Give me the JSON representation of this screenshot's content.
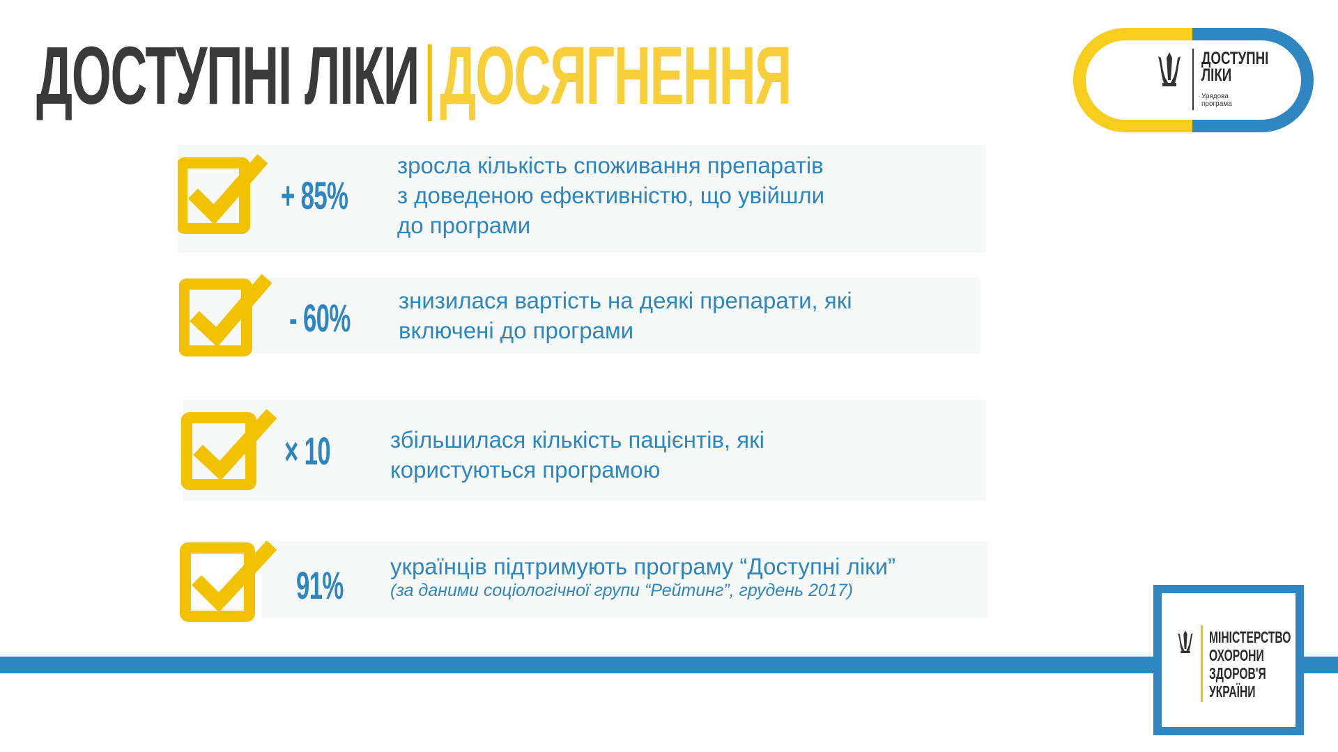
{
  "title": {
    "part1": "ДОСТУПНІ ЛІКИ",
    "separator": "|",
    "part2": "ДОСЯГНЕННЯ"
  },
  "logo": {
    "line1": "ДОСТУПНІ",
    "line2": "ЛІКИ",
    "sub1": "Урядова",
    "sub2": "програма",
    "icon": "trident-icon"
  },
  "items": [
    {
      "stat": "+ 85%",
      "lines": [
        "зросла кількість споживання препаратів",
        "з доведеною ефективністю, що увійшли",
        "до програми"
      ],
      "icon": "checkbox-icon"
    },
    {
      "stat": "- 60%",
      "lines": [
        "знизилася вартість на деякі препарати, які",
        "включені до програми"
      ],
      "icon": "checkbox-icon"
    },
    {
      "stat": "× 10",
      "lines": [
        "збільшилася кількість пацієнтів, які",
        "користуються програмою"
      ],
      "icon": "checkbox-icon"
    },
    {
      "stat": "91%",
      "lines": [
        "українців підтримують програму “Доступні ліки”"
      ],
      "note": "(за даними соціологічної групи “Рейтинг”, грудень 2017)",
      "icon": "checkbox-icon"
    }
  ],
  "ministry": {
    "line1": "МІНІСТЕРСТВО",
    "line2": "ОХОРОНИ",
    "line3": "ЗДОРОВ'Я",
    "line4": "УКРАЇНИ",
    "icon": "trident-icon"
  },
  "colors": {
    "accent_yellow": "#f2c200",
    "accent_blue": "#2e86c1",
    "title_dark": "#3a3a3a"
  }
}
